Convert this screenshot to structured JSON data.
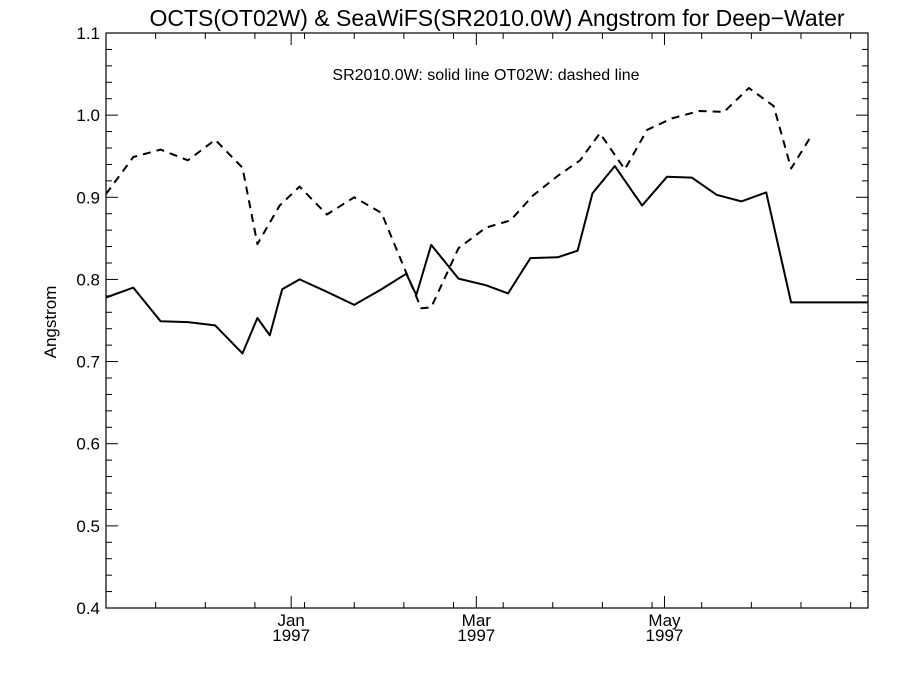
{
  "chart_data": {
    "type": "line",
    "title": "OCTS(OT02W) & SeaWiFS(SR2010.0W)  Angstrom for Deep−Water",
    "annotation": "SR2010.0W: solid line   OT02W: dashed line",
    "ylabel": "Angstrom",
    "xlabel": "",
    "ylim": [
      0.4,
      1.1
    ],
    "y_ticks": [
      "0.4",
      "0.5",
      "0.6",
      "0.7",
      "0.8",
      "0.9",
      "1.0",
      "1.1"
    ],
    "x_ticks": [
      {
        "month": "Jan",
        "year": "1997"
      },
      {
        "month": "Mar",
        "year": "1997"
      },
      {
        "month": "May",
        "year": "1997"
      }
    ],
    "grid": false,
    "series": [
      {
        "name": "SR2010.0W",
        "style": "solid",
        "color": "#000000",
        "x": [
          0,
          0.55,
          1.1,
          1.65,
          2.2,
          2.75,
          3.05,
          3.3,
          3.55,
          3.9,
          4.45,
          5.0,
          5.55,
          6.05,
          6.25,
          6.55,
          7.1,
          7.65,
          8.1,
          8.55,
          9.1,
          9.5,
          9.8,
          10.25,
          10.8,
          11.3,
          11.8,
          12.3,
          12.8,
          13.3,
          13.8,
          14.3,
          14.8,
          15.1,
          15.35
        ],
        "y": [
          0.778,
          0.79,
          0.749,
          0.748,
          0.744,
          0.71,
          0.753,
          0.732,
          0.788,
          0.8,
          0.785,
          0.769,
          0.788,
          0.807,
          0.781,
          0.842,
          0.801,
          0.793,
          0.783,
          0.826,
          0.827,
          0.835,
          0.905,
          0.938,
          0.89,
          0.925,
          0.924,
          0.903,
          0.895,
          0.906,
          0.772,
          0.772,
          0.772,
          0.772,
          0.772
        ]
      },
      {
        "name": "OT02W",
        "style": "dashed",
        "color": "#000000",
        "x": [
          0,
          0.55,
          1.1,
          1.65,
          2.2,
          2.75,
          3.05,
          3.5,
          3.9,
          4.45,
          5.0,
          5.55,
          6.0,
          6.35,
          6.55,
          7.1,
          7.65,
          8.15,
          8.6,
          9.1,
          9.55,
          9.95,
          10.45,
          10.9,
          11.4,
          11.95,
          12.45,
          12.95,
          13.45,
          13.8,
          14.2
        ],
        "y": [
          0.904,
          0.949,
          0.958,
          0.945,
          0.97,
          0.936,
          0.843,
          0.89,
          0.913,
          0.879,
          0.9,
          0.881,
          0.815,
          0.765,
          0.766,
          0.838,
          0.863,
          0.872,
          0.902,
          0.926,
          0.945,
          0.978,
          0.934,
          0.982,
          0.996,
          1.005,
          1.004,
          1.033,
          1.011,
          0.935,
          0.974
        ]
      }
    ]
  }
}
